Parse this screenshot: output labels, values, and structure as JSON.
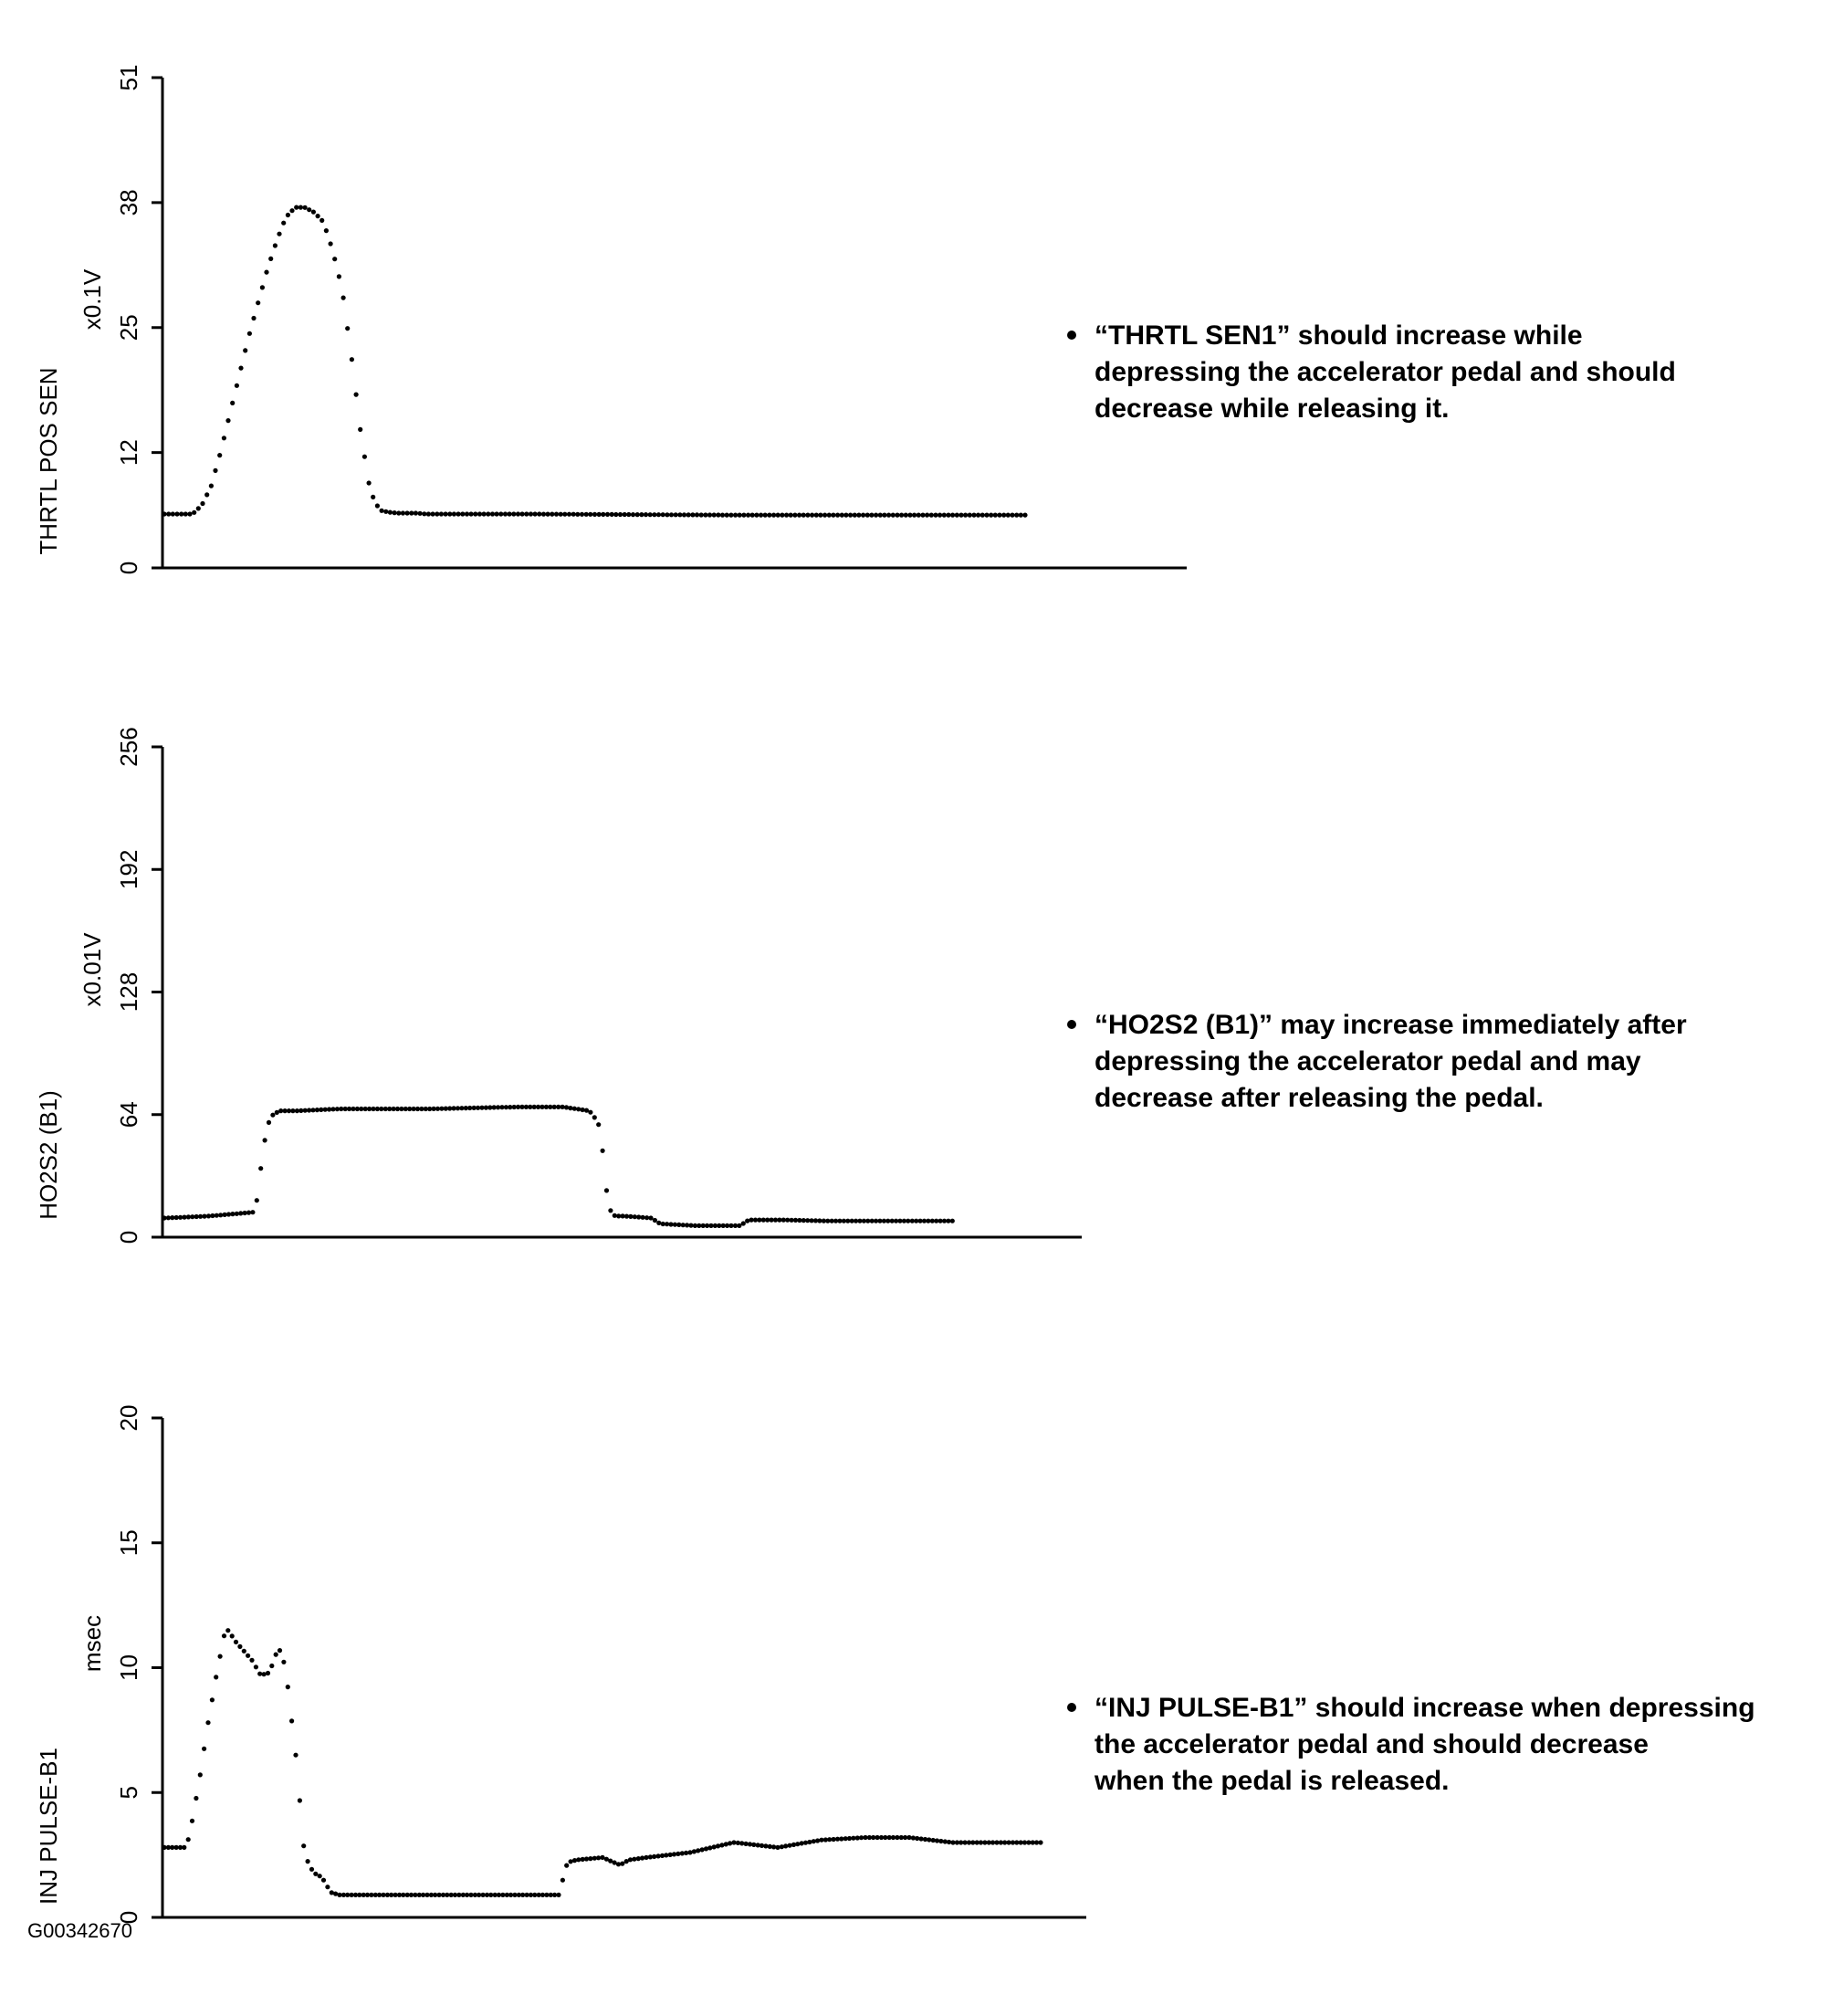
{
  "figure_id": "G00342670",
  "colors": {
    "ink": "#000000",
    "background": "#ffffff"
  },
  "chart_data": [
    {
      "type": "scatter",
      "ylabel": "THRTL POS SEN",
      "unit": "x0.1V",
      "yticks": [
        "0",
        "12",
        "25",
        "38",
        "51"
      ],
      "ylim": [
        0,
        51
      ],
      "xlim": [
        0,
        100
      ],
      "marker": "dotted trace",
      "annotation": [
        "“THRTL SEN1” should increase while",
        "depressing the accelerator pedal and should",
        "decrease while releasing it."
      ],
      "series": [
        {
          "x": [
            0,
            3,
            4,
            5,
            6,
            7,
            8,
            9,
            10,
            11,
            12,
            13,
            14,
            15,
            16,
            17,
            18,
            19,
            20,
            21,
            22,
            23,
            24,
            25,
            26,
            27,
            28,
            29,
            30,
            40,
            60,
            80,
            92
          ],
          "y": [
            5.6,
            5.6,
            6.5,
            8.5,
            12,
            16,
            20,
            24,
            27.5,
            31,
            34,
            36.5,
            37.5,
            37.5,
            37,
            36,
            33,
            29,
            22,
            14,
            8,
            6,
            5.8,
            5.7,
            5.7,
            5.7,
            5.6,
            5.6,
            5.6,
            5.6,
            5.5,
            5.5,
            5.5
          ]
        }
      ]
    },
    {
      "type": "scatter",
      "ylabel": "HO2S2 (B1)",
      "unit": "x0.01V",
      "yticks": [
        "0",
        "64",
        "128",
        "192",
        "256"
      ],
      "ylim": [
        0,
        256
      ],
      "xlim": [
        0,
        100
      ],
      "marker": "dotted trace",
      "annotation": [
        "“HO2S2 (B1)” may increase immediately after",
        "depressing the accelerator pedal and may",
        "decrease after releasing the pedal."
      ],
      "series": [
        {
          "x": [
            0,
            5,
            10,
            10.5,
            11,
            11.5,
            12,
            13,
            15,
            20,
            30,
            40,
            45,
            48,
            49,
            49.5,
            50,
            50.5,
            51,
            52,
            55,
            56,
            60,
            65,
            66,
            70,
            75,
            80,
            85,
            89
          ],
          "y": [
            10,
            11,
            13,
            20,
            40,
            55,
            63,
            66,
            66,
            67,
            67,
            68,
            68,
            66,
            60,
            45,
            22,
            12,
            11,
            11,
            10,
            7,
            6,
            6,
            9,
            9,
            8.5,
            8.5,
            8.5,
            8.5
          ]
        }
      ]
    },
    {
      "type": "scatter",
      "ylabel": "INJ PULSE-B1",
      "unit": "msec",
      "yticks": [
        "0",
        "5",
        "10",
        "15",
        "20"
      ],
      "ylim": [
        0,
        20
      ],
      "xlim": [
        0,
        100
      ],
      "marker": "dotted trace",
      "annotation": [
        "“INJ PULSE-B1” should increase when depressing",
        "the accelerator pedal and should decrease",
        "when the pedal is released."
      ],
      "series": [
        {
          "x": [
            0,
            2.5,
            3,
            4,
            5,
            6,
            7,
            7.5,
            8,
            9,
            10,
            11,
            12,
            13,
            13.5,
            14,
            15,
            16,
            17,
            18,
            19,
            20,
            22,
            30,
            40,
            45,
            46,
            47,
            50,
            52,
            53,
            55,
            60,
            65,
            70,
            75,
            80,
            85,
            90,
            95,
            100
          ],
          "y": [
            2.8,
            2.8,
            3.5,
            5.5,
            7.8,
            9.8,
            11.6,
            11.4,
            11.1,
            10.7,
            10.3,
            9.7,
            9.8,
            10.8,
            10.5,
            9.5,
            6.5,
            2.5,
            1.8,
            1.6,
            1,
            0.9,
            0.9,
            0.9,
            0.9,
            0.9,
            2.2,
            2.3,
            2.4,
            2.1,
            2.3,
            2.4,
            2.6,
            3,
            2.8,
            3.1,
            3.2,
            3.2,
            3,
            3,
            3
          ]
        }
      ]
    }
  ]
}
